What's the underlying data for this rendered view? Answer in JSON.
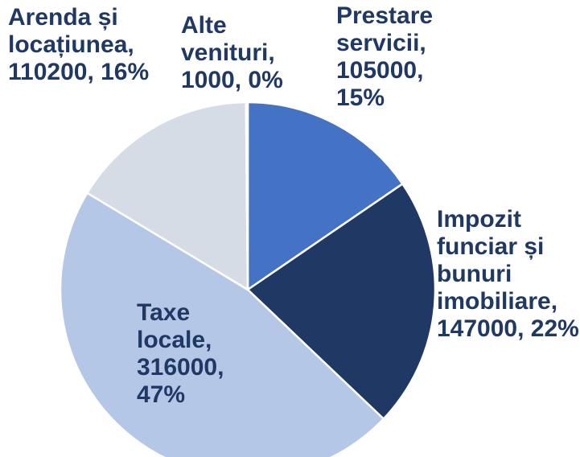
{
  "chart_data": {
    "type": "pie",
    "values": [
      105000,
      147000,
      316000,
      110200,
      1000
    ],
    "value_labels": [
      "Prestare servicii, 105000, 15%",
      "Impozit funciar și bunuri imobiliare, 147000, 22%",
      "Taxe locale, 316000, 47%",
      "Arenda și locațiunea, 110200, 16%",
      "Alte venituri, 1000, 0%"
    ],
    "colors": [
      "#4472c4",
      "#203864",
      "#b4c7e7",
      "#d6dce5",
      "#e9edf4"
    ]
  }
}
